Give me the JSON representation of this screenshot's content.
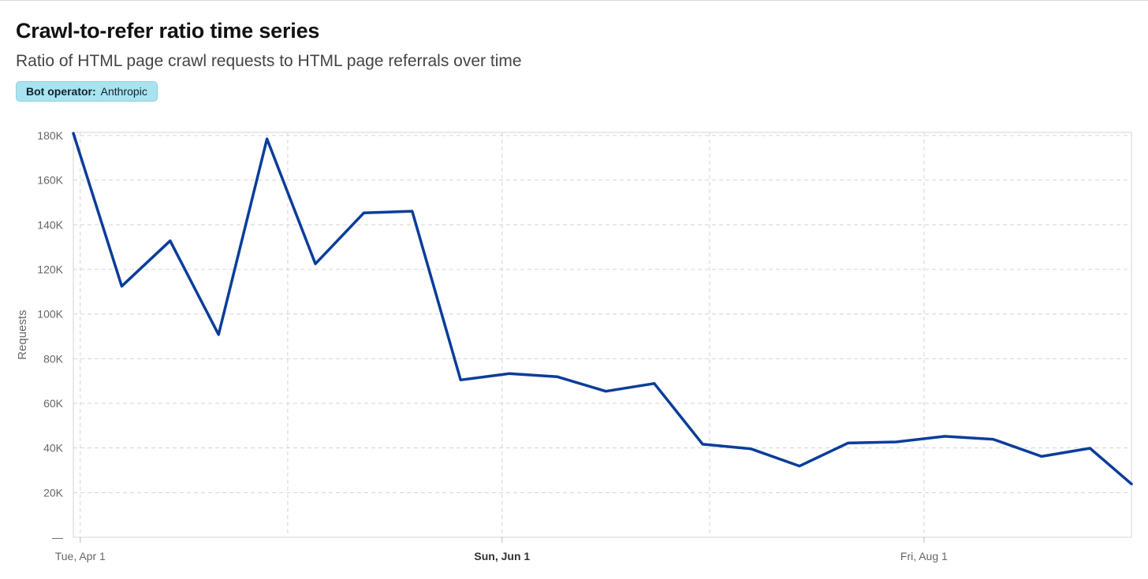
{
  "header": {
    "title": "Crawl-to-refer ratio time series",
    "subtitle": "Ratio of HTML page crawl requests to HTML page referrals over time"
  },
  "filter": {
    "key": "Bot operator:",
    "value": "Anthropic"
  },
  "colors": {
    "line": "#0a3d9a",
    "grid": "#d4d4d4",
    "badge_bg": "#a9e3ef"
  },
  "chart_data": {
    "type": "line",
    "ylabel": "Requests",
    "ylim": [
      0,
      180000
    ],
    "yticks": [
      0,
      20000,
      40000,
      60000,
      80000,
      100000,
      120000,
      140000,
      160000,
      180000
    ],
    "ytick_labels": [
      "—",
      "20K",
      "40K",
      "60K",
      "80K",
      "100K",
      "120K",
      "140K",
      "160K",
      "180K"
    ],
    "xlim": [
      "2025-03-31",
      "2025-08-31"
    ],
    "xgrid": [
      "2025-04-01",
      "2025-05-01",
      "2025-06-01",
      "2025-07-01",
      "2025-08-01"
    ],
    "xticks": [
      {
        "date": "2025-04-01",
        "label": "Tue, Apr 1",
        "bold": false
      },
      {
        "date": "2025-06-01",
        "label": "Sun, Jun 1",
        "bold": true
      },
      {
        "date": "2025-08-01",
        "label": "Fri, Aug 1",
        "bold": false
      }
    ],
    "grid": true,
    "series": [
      {
        "x": [
          "2025-03-31",
          "2025-04-07",
          "2025-04-14",
          "2025-04-21",
          "2025-04-28",
          "2025-05-05",
          "2025-05-12",
          "2025-05-19",
          "2025-05-26",
          "2025-06-02",
          "2025-06-09",
          "2025-06-16",
          "2025-06-23",
          "2025-06-30",
          "2025-07-07",
          "2025-07-14",
          "2025-07-21",
          "2025-07-28",
          "2025-08-04",
          "2025-08-11",
          "2025-08-18",
          "2025-08-25",
          "2025-08-31"
        ],
        "values": [
          181000,
          112500,
          132800,
          90800,
          178500,
          122500,
          145300,
          146100,
          70500,
          73300,
          71900,
          65400,
          68900,
          41700,
          39600,
          31900,
          42200,
          42700,
          45200,
          43900,
          36200,
          39900,
          23900
        ]
      }
    ]
  }
}
